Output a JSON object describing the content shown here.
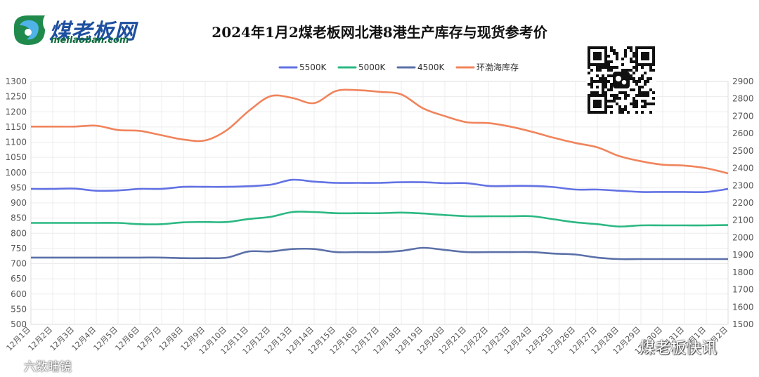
{
  "header": {
    "logo_text": "煤老板网",
    "logo_domain": "meilaoban.com",
    "title": "2024年1月2煤老板网北港8港生产库存与现货参考价"
  },
  "watermarks": {
    "right": "煤老板快讯",
    "left": "六数瞎镜"
  },
  "colors": {
    "s5500": "#6272e4",
    "s5000": "#2bb882",
    "s4500": "#5b70a8",
    "inventory": "#f0845c",
    "grid": "#ececec",
    "axis_text": "#555555"
  },
  "chart_data": {
    "type": "line",
    "title": "2024年1月2煤老板网北港8港生产库存与现货参考价",
    "categories": [
      "12月1日",
      "12月2日",
      "12月3日",
      "12月4日",
      "12月5日",
      "12月6日",
      "12月7日",
      "12月8日",
      "12月9日",
      "12月10日",
      "12月11日",
      "12月12日",
      "12月13日",
      "12月14日",
      "12月15日",
      "12月16日",
      "12月17日",
      "12月18日",
      "12月19日",
      "12月20日",
      "12月21日",
      "12月22日",
      "12月23日",
      "12月24日",
      "12月25日",
      "12月26日",
      "12月27日",
      "12月28日",
      "12月29日",
      "12月30日",
      "12月31日",
      "1月1日",
      "1月2日"
    ],
    "y_left": {
      "min": 500,
      "max": 1300,
      "step": 50
    },
    "y_right": {
      "min": 1500,
      "max": 2900,
      "step": 100
    },
    "legend_position": "top-center",
    "series": [
      {
        "name": "5500K",
        "axis": "left",
        "color_key": "s5500",
        "values": [
          946,
          946,
          947,
          940,
          941,
          946,
          946,
          953,
          953,
          953,
          955,
          960,
          976,
          970,
          966,
          966,
          966,
          968,
          968,
          965,
          965,
          956,
          956,
          956,
          952,
          944,
          944,
          940,
          936,
          936,
          936,
          936,
          946
        ]
      },
      {
        "name": "5000K",
        "axis": "left",
        "color_key": "s5000",
        "values": [
          834,
          834,
          834,
          834,
          834,
          830,
          830,
          836,
          837,
          837,
          847,
          854,
          870,
          870,
          866,
          866,
          866,
          868,
          865,
          860,
          856,
          856,
          856,
          856,
          846,
          836,
          830,
          822,
          826,
          826,
          826,
          826,
          827
        ]
      },
      {
        "name": "4500K",
        "axis": "left",
        "color_key": "s4500",
        "values": [
          720,
          720,
          720,
          720,
          720,
          720,
          720,
          718,
          718,
          720,
          740,
          740,
          748,
          748,
          738,
          738,
          738,
          742,
          752,
          745,
          738,
          738,
          738,
          738,
          733,
          730,
          720,
          715,
          715,
          715,
          715,
          715,
          715
        ]
      },
      {
        "name": "环渤海库存",
        "axis": "right",
        "color_key": "inventory",
        "values": [
          2640,
          2640,
          2640,
          2645,
          2620,
          2615,
          2590,
          2565,
          2560,
          2620,
          2730,
          2815,
          2805,
          2775,
          2845,
          2850,
          2840,
          2825,
          2745,
          2700,
          2665,
          2660,
          2640,
          2610,
          2575,
          2545,
          2520,
          2470,
          2440,
          2420,
          2415,
          2400,
          2370
        ]
      }
    ]
  }
}
